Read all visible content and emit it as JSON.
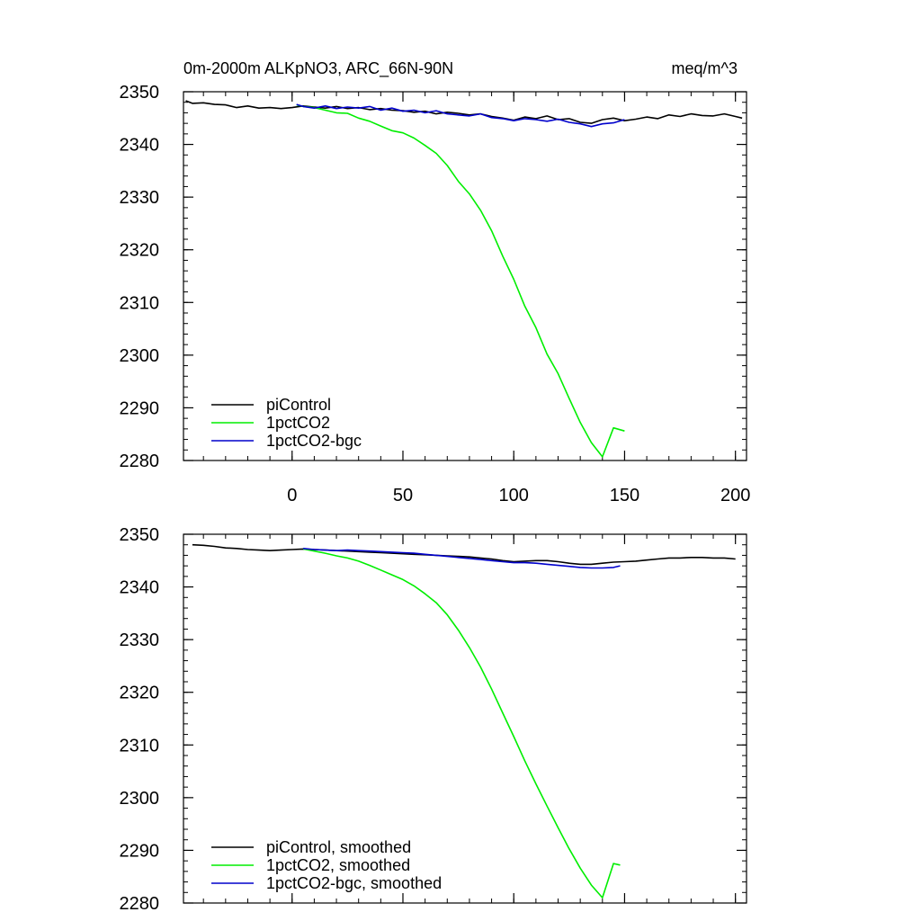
{
  "header": {
    "title": "0m-2000m ALKpNO3, ARC_66N-90N",
    "units": "meq/m^3"
  },
  "colors": {
    "piControl": "#000000",
    "1pctCO2": "#00ee00",
    "1pctCO2-bgc": "#0000cc"
  },
  "chart_data": [
    {
      "type": "line",
      "xlim": [
        -49,
        205
      ],
      "ylim": [
        2280,
        2350
      ],
      "xticks": [
        0,
        50,
        100,
        150,
        200
      ],
      "yticks": [
        2280,
        2290,
        2300,
        2310,
        2320,
        2330,
        2340,
        2350
      ],
      "xtick_labels_shown": true,
      "legend_position": "bottom-left",
      "series": [
        {
          "name": "piControl",
          "key": "piControl",
          "x": [
            -48,
            -45,
            -40,
            -35,
            -30,
            -25,
            -20,
            -15,
            -10,
            -5,
            0,
            5,
            10,
            15,
            20,
            25,
            30,
            35,
            40,
            45,
            50,
            55,
            60,
            65,
            70,
            75,
            80,
            85,
            90,
            95,
            100,
            105,
            110,
            115,
            120,
            125,
            130,
            135,
            140,
            145,
            150,
            155,
            160,
            165,
            170,
            175,
            180,
            185,
            190,
            195,
            200,
            203
          ],
          "y": [
            2348.3,
            2347.8,
            2347.9,
            2347.6,
            2347.5,
            2347.0,
            2347.3,
            2346.9,
            2347.0,
            2346.8,
            2347.0,
            2347.3,
            2347.1,
            2346.9,
            2347.2,
            2346.8,
            2347.0,
            2346.6,
            2346.8,
            2346.5,
            2346.4,
            2346.1,
            2346.3,
            2345.8,
            2346.1,
            2345.9,
            2345.6,
            2345.8,
            2345.3,
            2345.0,
            2344.6,
            2345.2,
            2344.9,
            2345.4,
            2344.7,
            2344.9,
            2344.2,
            2344.0,
            2344.7,
            2345.0,
            2344.5,
            2344.8,
            2345.2,
            2344.9,
            2345.6,
            2345.3,
            2345.8,
            2345.5,
            2345.4,
            2345.8,
            2345.3,
            2345.0
          ]
        },
        {
          "name": "1pctCO2",
          "key": "1pctCO2",
          "x": [
            2,
            5,
            10,
            15,
            20,
            25,
            30,
            35,
            40,
            45,
            50,
            55,
            60,
            65,
            70,
            75,
            80,
            85,
            90,
            95,
            100,
            105,
            110,
            115,
            120,
            125,
            130,
            135,
            140,
            145,
            150
          ],
          "y": [
            2347.5,
            2347.2,
            2347.0,
            2346.5,
            2346.0,
            2345.9,
            2345.0,
            2344.4,
            2343.5,
            2342.6,
            2342.2,
            2341.2,
            2339.8,
            2338.3,
            2336.0,
            2333.0,
            2330.6,
            2327.5,
            2323.6,
            2318.8,
            2314.4,
            2309.3,
            2305.2,
            2300.2,
            2296.5,
            2291.8,
            2287.2,
            2283.4,
            2280.7,
            2286.2,
            2285.6
          ]
        },
        {
          "name": "1pctCO2-bgc",
          "key": "1pctCO2-bgc",
          "x": [
            2,
            5,
            10,
            15,
            20,
            25,
            30,
            35,
            40,
            45,
            50,
            55,
            60,
            65,
            70,
            75,
            80,
            85,
            90,
            95,
            100,
            105,
            110,
            115,
            120,
            125,
            130,
            135,
            140,
            145,
            150
          ],
          "y": [
            2347.6,
            2347.2,
            2346.9,
            2347.3,
            2346.8,
            2347.1,
            2346.9,
            2347.2,
            2346.5,
            2346.9,
            2346.3,
            2346.5,
            2346.0,
            2346.4,
            2345.8,
            2345.6,
            2345.4,
            2345.8,
            2345.1,
            2344.9,
            2344.5,
            2344.9,
            2344.7,
            2344.4,
            2344.8,
            2344.2,
            2343.9,
            2343.4,
            2343.9,
            2344.1,
            2344.7
          ]
        }
      ]
    },
    {
      "type": "line",
      "xlim": [
        -49,
        205
      ],
      "ylim": [
        2280,
        2350
      ],
      "xticks": [
        0,
        50,
        100,
        150,
        200
      ],
      "yticks": [
        2280,
        2290,
        2300,
        2310,
        2320,
        2330,
        2340,
        2350
      ],
      "xtick_labels_shown": false,
      "legend_position": "bottom-left",
      "series": [
        {
          "name": "piControl, smoothed",
          "key": "piControl",
          "x": [
            -45,
            -40,
            -35,
            -30,
            -25,
            -20,
            -15,
            -10,
            -5,
            0,
            5,
            10,
            15,
            20,
            25,
            30,
            35,
            40,
            45,
            50,
            55,
            60,
            65,
            70,
            75,
            80,
            85,
            90,
            95,
            100,
            105,
            110,
            115,
            120,
            125,
            130,
            135,
            140,
            145,
            150,
            155,
            160,
            165,
            170,
            175,
            180,
            185,
            190,
            195,
            200
          ],
          "y": [
            2348.0,
            2347.9,
            2347.7,
            2347.4,
            2347.3,
            2347.1,
            2347.0,
            2346.9,
            2347.0,
            2347.1,
            2347.2,
            2347.1,
            2347.0,
            2346.9,
            2346.8,
            2346.7,
            2346.6,
            2346.5,
            2346.4,
            2346.3,
            2346.2,
            2346.1,
            2346.0,
            2345.9,
            2345.8,
            2345.7,
            2345.5,
            2345.3,
            2345.0,
            2344.8,
            2344.9,
            2345.0,
            2345.0,
            2344.8,
            2344.5,
            2344.3,
            2344.3,
            2344.5,
            2344.7,
            2344.8,
            2344.9,
            2345.1,
            2345.3,
            2345.5,
            2345.5,
            2345.6,
            2345.6,
            2345.5,
            2345.5,
            2345.3
          ]
        },
        {
          "name": "1pctCO2, smoothed",
          "key": "1pctCO2",
          "x": [
            5,
            10,
            15,
            20,
            25,
            30,
            35,
            40,
            45,
            50,
            55,
            60,
            65,
            70,
            75,
            80,
            85,
            90,
            95,
            100,
            105,
            110,
            115,
            120,
            125,
            130,
            135,
            140,
            145,
            148
          ],
          "y": [
            2347.2,
            2346.8,
            2346.4,
            2345.9,
            2345.5,
            2344.9,
            2344.1,
            2343.2,
            2342.3,
            2341.4,
            2340.2,
            2338.7,
            2337.0,
            2334.7,
            2331.8,
            2328.5,
            2324.8,
            2320.6,
            2316.1,
            2311.6,
            2307.0,
            2302.6,
            2298.4,
            2294.3,
            2290.3,
            2286.6,
            2283.4,
            2281.0,
            2287.5,
            2287.2
          ]
        },
        {
          "name": "1pctCO2-bgc, smoothed",
          "key": "1pctCO2-bgc",
          "x": [
            5,
            10,
            15,
            20,
            25,
            30,
            35,
            40,
            45,
            50,
            55,
            60,
            65,
            70,
            75,
            80,
            85,
            90,
            95,
            100,
            105,
            110,
            115,
            120,
            125,
            130,
            135,
            140,
            145,
            148
          ],
          "y": [
            2347.3,
            2347.1,
            2347.0,
            2346.9,
            2347.0,
            2346.9,
            2346.8,
            2346.7,
            2346.6,
            2346.5,
            2346.4,
            2346.2,
            2346.0,
            2345.8,
            2345.6,
            2345.4,
            2345.2,
            2345.0,
            2344.8,
            2344.6,
            2344.6,
            2344.5,
            2344.3,
            2344.1,
            2343.9,
            2343.7,
            2343.6,
            2343.6,
            2343.7,
            2344.0
          ]
        }
      ]
    }
  ]
}
